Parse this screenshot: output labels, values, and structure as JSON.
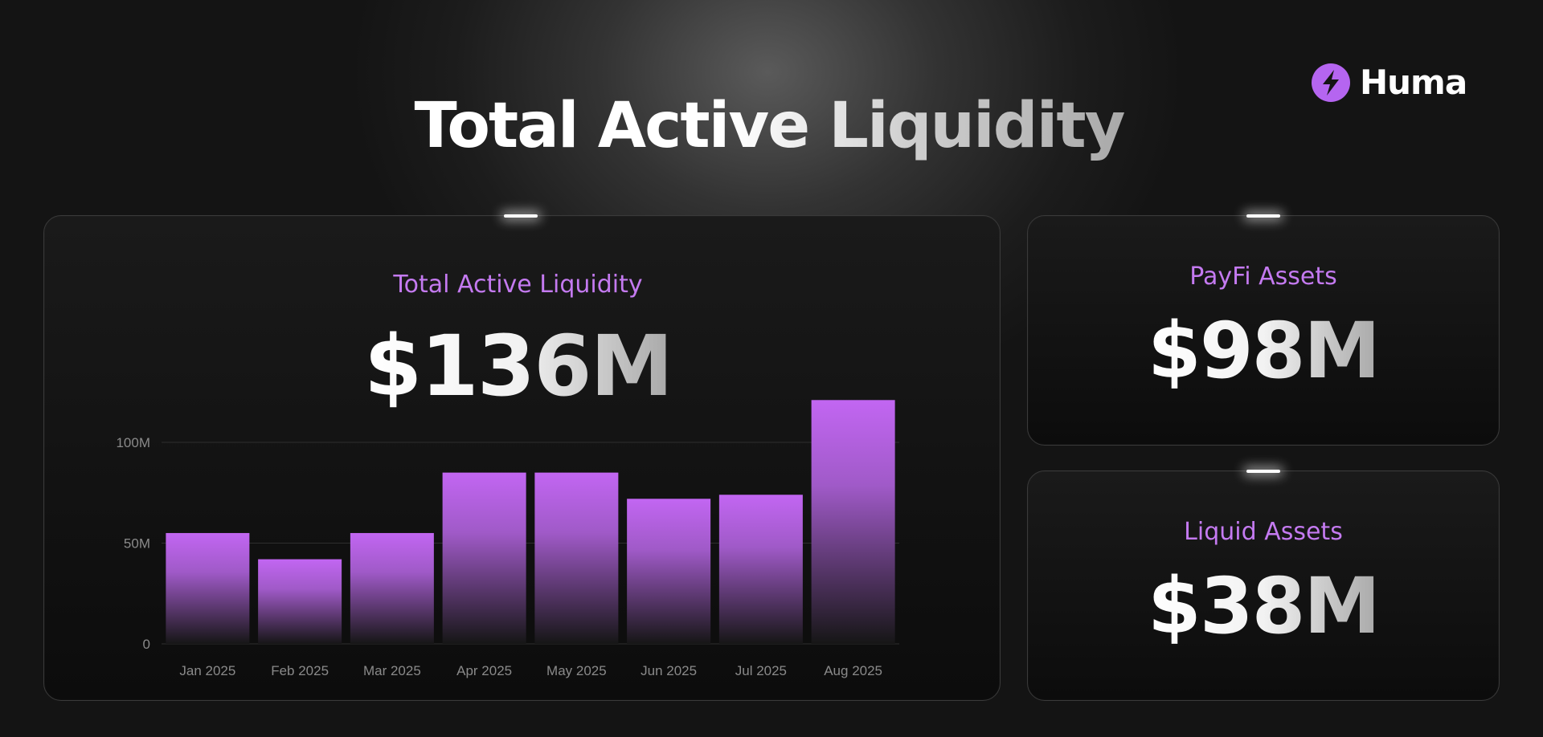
{
  "brand": {
    "name": "Huma",
    "mark_color": "#b565f0"
  },
  "page_title": "Total Active Liquidity",
  "chart_card": {
    "label": "Total Active Liquidity",
    "value": "$136M"
  },
  "payfi_card": {
    "label": "PayFi Assets",
    "value": "$98M"
  },
  "liquid_card": {
    "label": "Liquid Assets",
    "value": "$38M"
  },
  "colors": {
    "accent": "#c47af0",
    "bar_top": "#c266f2",
    "bar_bottom": "#161616"
  },
  "chart_data": {
    "type": "bar",
    "title": "Total Active Liquidity",
    "categories": [
      "Jan 2025",
      "Feb 2025",
      "Mar 2025",
      "Apr 2025",
      "May 2025",
      "Jun 2025",
      "Jul 2025",
      "Aug 2025"
    ],
    "values": [
      55,
      42,
      55,
      85,
      85,
      72,
      74,
      121
    ],
    "unit": "M",
    "yticks": [
      0,
      50,
      100
    ],
    "ytick_labels": [
      "0",
      "50M",
      "100M"
    ],
    "ylim": [
      0,
      125
    ],
    "grid": "horizontal"
  }
}
